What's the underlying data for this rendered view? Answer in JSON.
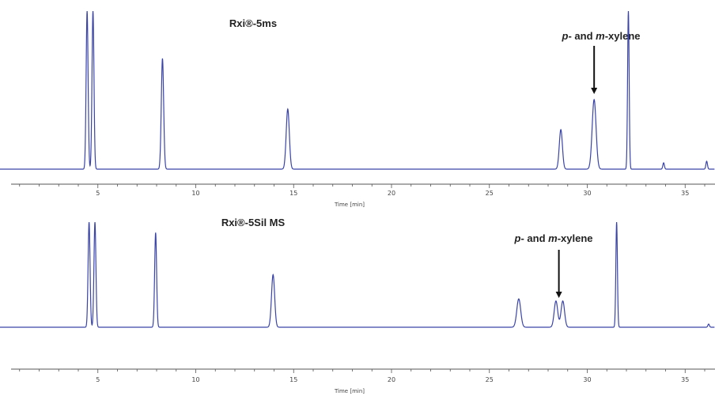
{
  "chart_data": [
    {
      "type": "line",
      "title": "Rxi®-5ms",
      "xlabel": "Time [min]",
      "ylabel": "",
      "xlim": [
        0,
        36.5
      ],
      "xticks": [
        5,
        10,
        15,
        20,
        25,
        30,
        35
      ],
      "line_color": "#3a44a8",
      "baseline": 0.02,
      "peaks": [
        {
          "t": 4.45,
          "h": 1.0,
          "w": 0.05
        },
        {
          "t": 4.75,
          "h": 1.0,
          "w": 0.05
        },
        {
          "t": 8.3,
          "h": 0.7,
          "w": 0.06
        },
        {
          "t": 14.7,
          "h": 0.38,
          "w": 0.08
        },
        {
          "t": 28.65,
          "h": 0.25,
          "w": 0.08
        },
        {
          "t": 30.35,
          "h": 0.44,
          "w": 0.1
        },
        {
          "t": 32.1,
          "h": 1.0,
          "w": 0.04
        },
        {
          "t": 33.9,
          "h": 0.04,
          "w": 0.04
        },
        {
          "t": 36.1,
          "h": 0.05,
          "w": 0.04
        }
      ],
      "annotation": {
        "italic_p": "p",
        "mid": "- and ",
        "italic_m": "m",
        "tail": "-xylene",
        "target_t": 30.35
      }
    },
    {
      "type": "line",
      "title": "Rxi®-5Sil MS",
      "xlabel": "Time [min]",
      "ylabel": "",
      "xlim": [
        0,
        36.5
      ],
      "xticks": [
        5,
        10,
        15,
        20,
        25,
        30,
        35
      ],
      "line_color": "#3a44a8",
      "baseline": 0.02,
      "peaks": [
        {
          "t": 4.55,
          "h": 1.0,
          "w": 0.05
        },
        {
          "t": 4.85,
          "h": 1.0,
          "w": 0.05
        },
        {
          "t": 7.95,
          "h": 0.9,
          "w": 0.05
        },
        {
          "t": 13.95,
          "h": 0.5,
          "w": 0.08
        },
        {
          "t": 26.5,
          "h": 0.27,
          "w": 0.1
        },
        {
          "t": 28.4,
          "h": 0.25,
          "w": 0.09
        },
        {
          "t": 28.75,
          "h": 0.25,
          "w": 0.09
        },
        {
          "t": 31.5,
          "h": 1.0,
          "w": 0.04
        },
        {
          "t": 36.2,
          "h": 0.03,
          "w": 0.04
        }
      ],
      "annotation": {
        "italic_p": "p",
        "mid": "- and ",
        "italic_m": "m",
        "tail": "-xylene",
        "target_t": 28.55
      }
    }
  ]
}
